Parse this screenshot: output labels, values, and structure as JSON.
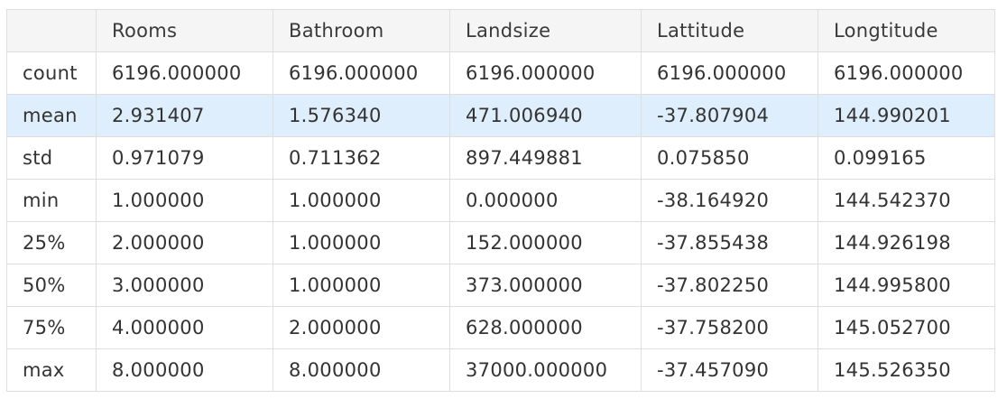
{
  "table": {
    "corner": "",
    "columns": [
      "Rooms",
      "Bathroom",
      "Landsize",
      "Lattitude",
      "Longtitude"
    ],
    "rows": [
      {
        "label": "count",
        "values": [
          "6196.000000",
          "6196.000000",
          "6196.000000",
          "6196.000000",
          "6196.000000"
        ]
      },
      {
        "label": "mean",
        "values": [
          "2.931407",
          "1.576340",
          "471.006940",
          "-37.807904",
          "144.990201"
        ]
      },
      {
        "label": "std",
        "values": [
          "0.971079",
          "0.711362",
          "897.449881",
          "0.075850",
          "0.099165"
        ]
      },
      {
        "label": "min",
        "values": [
          "1.000000",
          "1.000000",
          "0.000000",
          "-38.164920",
          "144.542370"
        ]
      },
      {
        "label": "25%",
        "values": [
          "2.000000",
          "1.000000",
          "152.000000",
          "-37.855438",
          "144.926198"
        ]
      },
      {
        "label": "50%",
        "values": [
          "3.000000",
          "1.000000",
          "373.000000",
          "-37.802250",
          "144.995800"
        ]
      },
      {
        "label": "75%",
        "values": [
          "4.000000",
          "2.000000",
          "628.000000",
          "-37.758200",
          "145.052700"
        ]
      },
      {
        "label": "max",
        "values": [
          "8.000000",
          "8.000000",
          "37000.000000",
          "-37.457090",
          "145.526350"
        ]
      }
    ],
    "highlighted_row": "mean"
  },
  "colors": {
    "header_bg": "#f5f5f5",
    "highlight_bg": "#dfeefc",
    "border": "#dedede",
    "text": "#333333"
  }
}
